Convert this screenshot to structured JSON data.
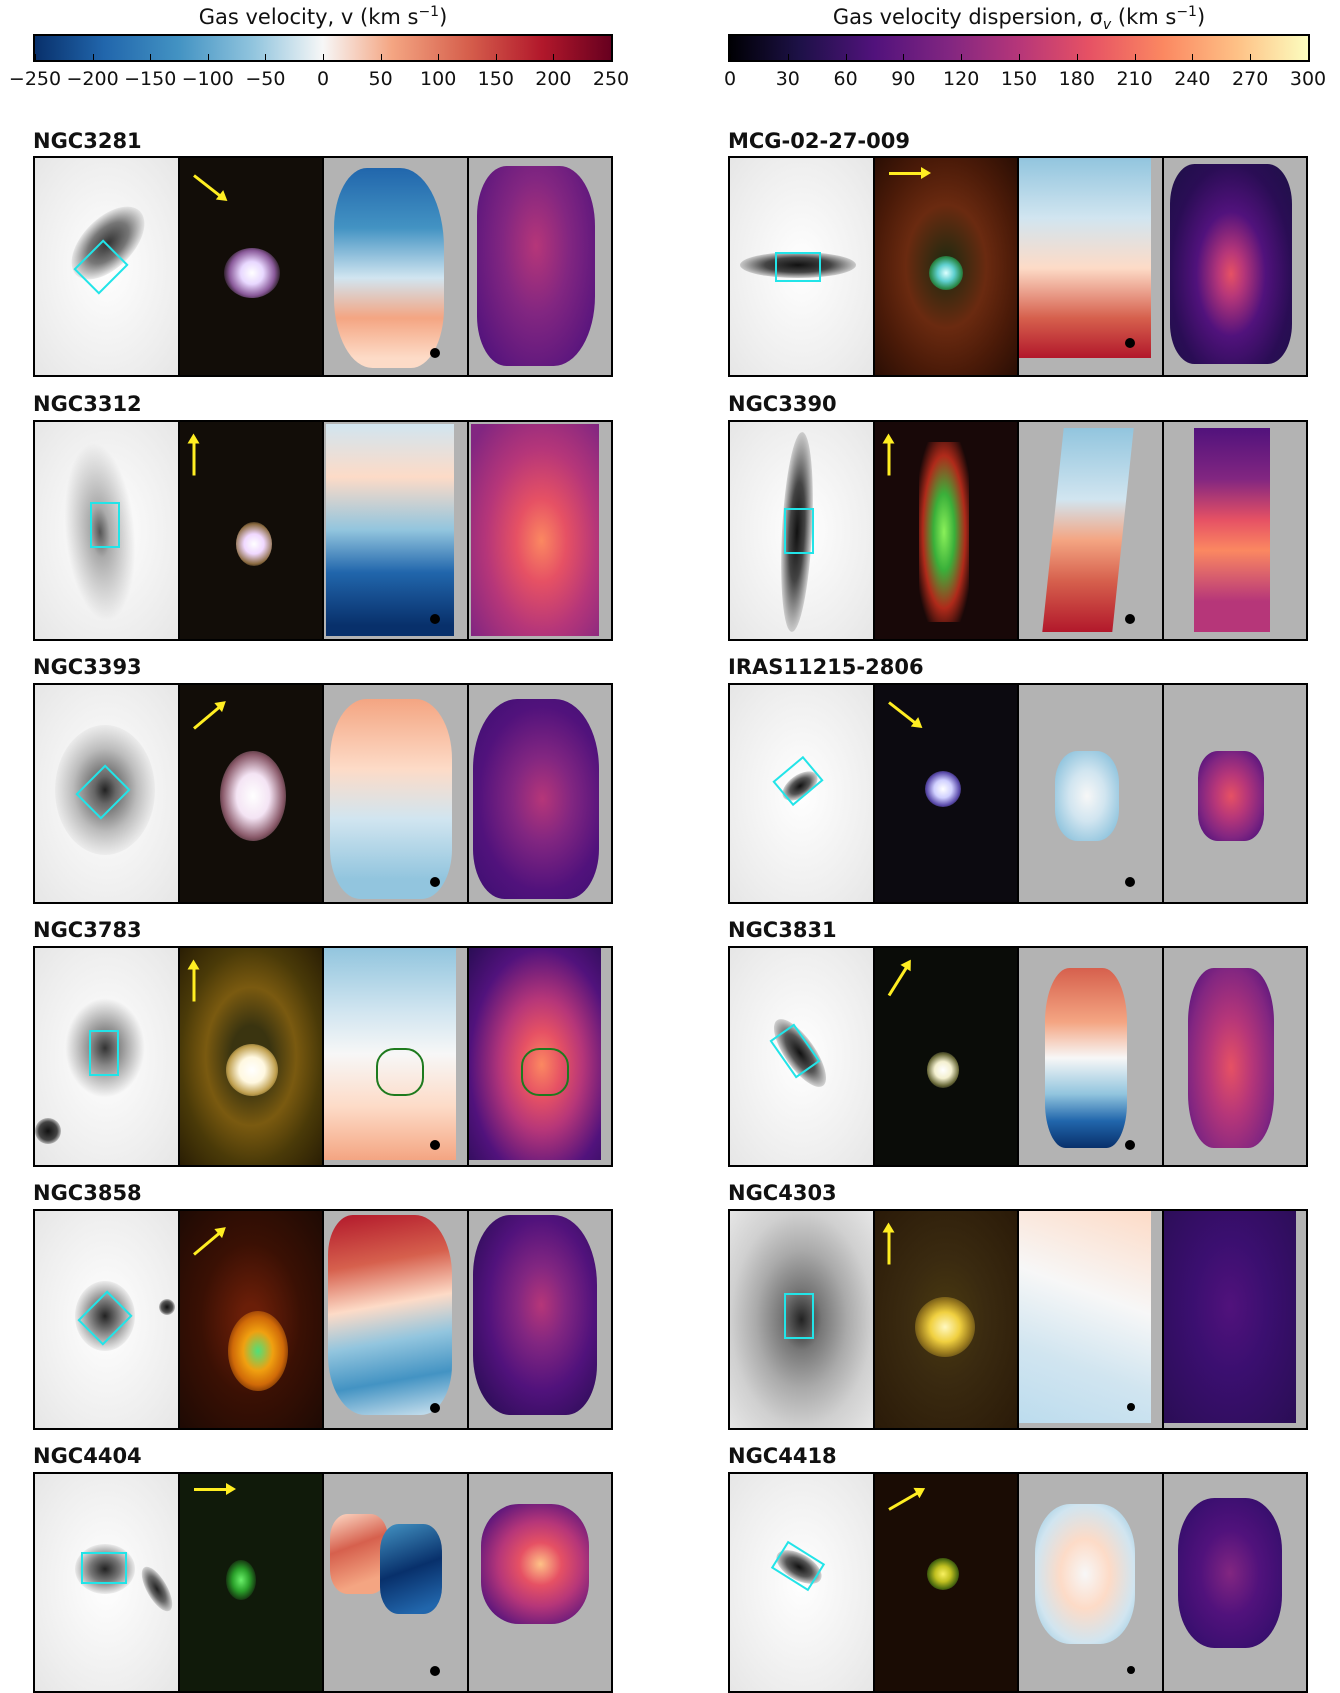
{
  "colorbars": {
    "velocity": {
      "title_prefix": "Gas velocity, v (km s",
      "title_sup": "−1",
      "title_suffix": ")",
      "ticks": [
        "−250",
        "−200",
        "−150",
        "−100",
        "−50",
        "0",
        "50",
        "100",
        "150",
        "200",
        "250"
      ],
      "colors": [
        "#08306b",
        "#f7f7f7",
        "#67001f"
      ]
    },
    "dispersion": {
      "title_prefix": "Gas velocity dispersion, σ",
      "title_sub": "v",
      "title_mid": " (km s",
      "title_sup": "−1",
      "title_suffix": ")",
      "ticks": [
        "0",
        "30",
        "60",
        "90",
        "120",
        "150",
        "180",
        "210",
        "240",
        "270",
        "300"
      ],
      "colors": [
        "#000004",
        "#b63679",
        "#fcfdbf"
      ]
    }
  },
  "galaxies": [
    {
      "name": "NGC3281"
    },
    {
      "name": "MCG-02-27-009"
    },
    {
      "name": "NGC3312"
    },
    {
      "name": "NGC3390"
    },
    {
      "name": "NGC3393"
    },
    {
      "name": "IRAS11215-2806"
    },
    {
      "name": "NGC3783"
    },
    {
      "name": "NGC3831"
    },
    {
      "name": "NGC3858"
    },
    {
      "name": "NGC4303"
    },
    {
      "name": "NGC4404"
    },
    {
      "name": "NGC4418"
    }
  ]
}
